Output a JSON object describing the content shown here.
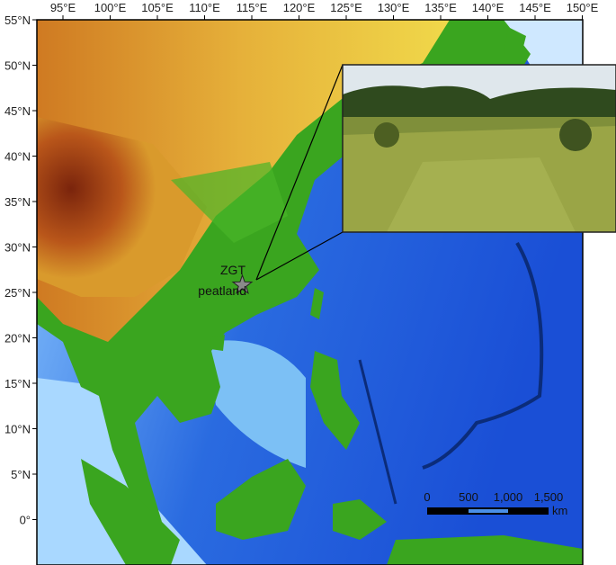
{
  "map": {
    "longitude_labels": [
      "95°E",
      "100°E",
      "105°E",
      "110°E",
      "115°E",
      "120°E",
      "125°E",
      "130°E",
      "135°E",
      "140°E",
      "145°E",
      "150°E"
    ],
    "latitude_labels": [
      "55°N",
      "50°N",
      "45°N",
      "40°N",
      "35°N",
      "30°N",
      "25°N",
      "20°N",
      "15°N",
      "10°N",
      "5°N",
      "0°"
    ],
    "site_label_line1": "ZGT",
    "site_label_line2": "peatland",
    "site_marker": "star-icon",
    "site_coordinates": {
      "lon": 114,
      "lat": 25.8
    },
    "scale_bar": {
      "labels": [
        "0",
        "500",
        "1,000",
        "1,500"
      ],
      "unit": "km"
    },
    "inset": {
      "content": "photo of peatland grassland with hills"
    },
    "colors": {
      "ocean_deep": "#1a4fd6",
      "ocean_shallow": "#bfe3ff",
      "lowland": "#2f9a1a",
      "upland": "#e2b233",
      "highland": "#8a2d0e"
    }
  }
}
